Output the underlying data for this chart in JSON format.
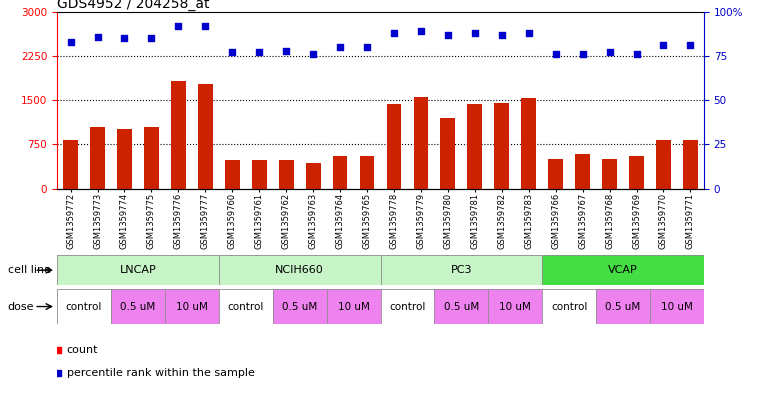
{
  "title": "GDS4952 / 204258_at",
  "samples": [
    "GSM1359772",
    "GSM1359773",
    "GSM1359774",
    "GSM1359775",
    "GSM1359776",
    "GSM1359777",
    "GSM1359760",
    "GSM1359761",
    "GSM1359762",
    "GSM1359763",
    "GSM1359764",
    "GSM1359765",
    "GSM1359778",
    "GSM1359779",
    "GSM1359780",
    "GSM1359781",
    "GSM1359782",
    "GSM1359783",
    "GSM1359766",
    "GSM1359767",
    "GSM1359768",
    "GSM1359769",
    "GSM1359770",
    "GSM1359771"
  ],
  "bar_values": [
    820,
    1050,
    1020,
    1040,
    1820,
    1770,
    480,
    490,
    490,
    430,
    560,
    560,
    1430,
    1560,
    1200,
    1430,
    1460,
    1530,
    510,
    590,
    510,
    560,
    820,
    820
  ],
  "percentile_values": [
    83,
    86,
    85,
    85,
    92,
    92,
    77,
    77,
    78,
    76,
    80,
    80,
    88,
    89,
    87,
    88,
    87,
    88,
    76,
    76,
    77,
    76,
    81,
    81
  ],
  "cell_lines": [
    {
      "name": "LNCAP",
      "start": 0,
      "end": 6,
      "color": "#c8f5c8"
    },
    {
      "name": "NCIH660",
      "start": 6,
      "end": 12,
      "color": "#c8f5c8"
    },
    {
      "name": "PC3",
      "start": 12,
      "end": 18,
      "color": "#c8f5c8"
    },
    {
      "name": "VCAP",
      "start": 18,
      "end": 24,
      "color": "#44dd44"
    }
  ],
  "doses": [
    {
      "label": "control",
      "start": 0,
      "end": 2,
      "color": "#ffffff"
    },
    {
      "label": "0.5 uM",
      "start": 2,
      "end": 4,
      "color": "#ee82ee"
    },
    {
      "label": "10 uM",
      "start": 4,
      "end": 6,
      "color": "#ee82ee"
    },
    {
      "label": "control",
      "start": 6,
      "end": 8,
      "color": "#ffffff"
    },
    {
      "label": "0.5 uM",
      "start": 8,
      "end": 10,
      "color": "#ee82ee"
    },
    {
      "label": "10 uM",
      "start": 10,
      "end": 12,
      "color": "#ee82ee"
    },
    {
      "label": "control",
      "start": 12,
      "end": 14,
      "color": "#ffffff"
    },
    {
      "label": "0.5 uM",
      "start": 14,
      "end": 16,
      "color": "#ee82ee"
    },
    {
      "label": "10 uM",
      "start": 16,
      "end": 18,
      "color": "#ee82ee"
    },
    {
      "label": "control",
      "start": 18,
      "end": 20,
      "color": "#ffffff"
    },
    {
      "label": "0.5 uM",
      "start": 20,
      "end": 22,
      "color": "#ee82ee"
    },
    {
      "label": "10 uM",
      "start": 22,
      "end": 24,
      "color": "#ee82ee"
    }
  ],
  "bar_color": "#cc2200",
  "dot_color": "#0000cc",
  "dot_size": 18,
  "left_ylim": [
    0,
    3000
  ],
  "right_ylim": [
    0,
    100
  ],
  "left_yticks": [
    0,
    750,
    1500,
    2250,
    3000
  ],
  "right_yticks": [
    0,
    25,
    50,
    75,
    100
  ],
  "grid_values": [
    750,
    1500,
    2250
  ],
  "plot_bg_color": "#ffffff",
  "fig_bg_color": "#ffffff",
  "bar_width": 0.55,
  "title_fontsize": 10,
  "tick_fontsize": 7.5,
  "sample_fontsize": 6.0,
  "label_fontsize": 8,
  "cell_line_label_fontsize": 8,
  "dose_label_fontsize": 7.5
}
